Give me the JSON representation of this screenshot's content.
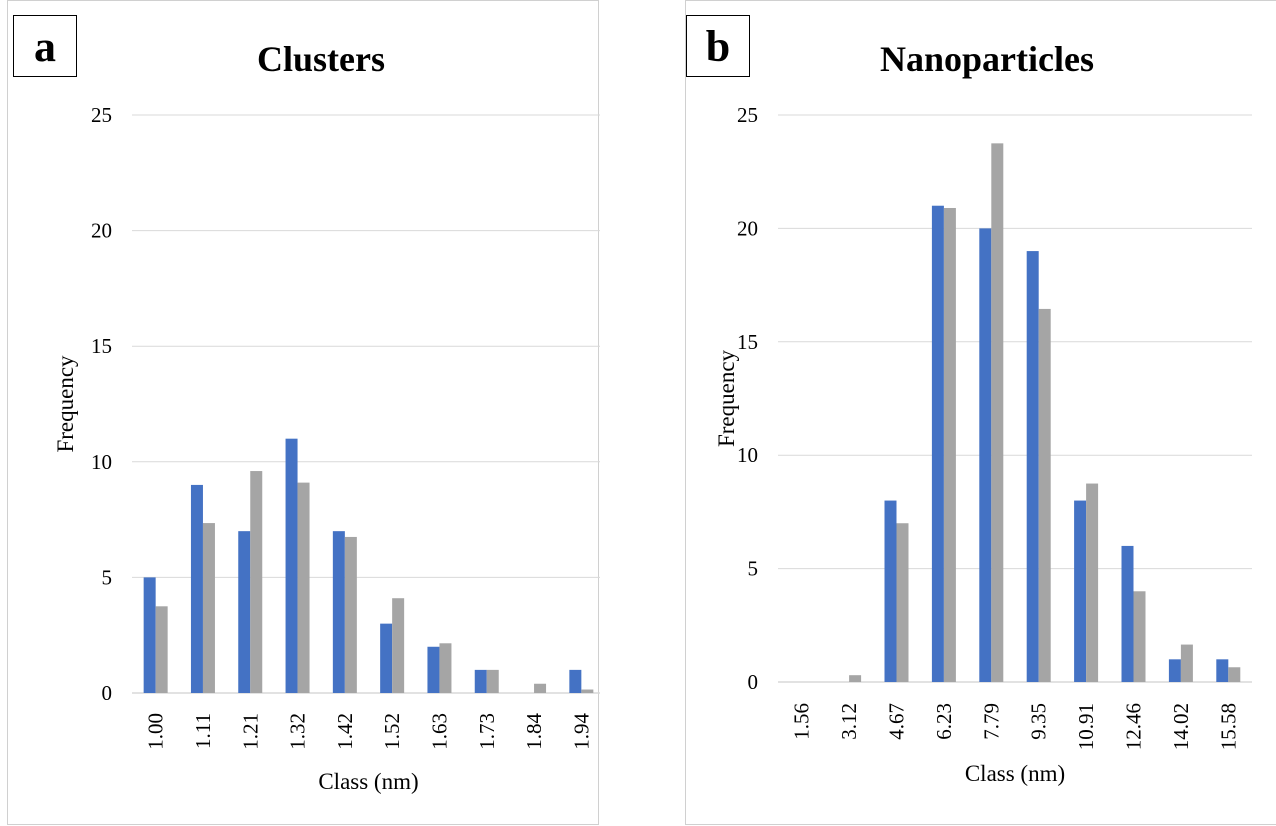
{
  "colors": {
    "series1": "#4472c4",
    "series2": "#a5a5a5",
    "grid": "#d9d9d9"
  },
  "chart_data": [
    {
      "type": "bar",
      "panel_label": "a",
      "title": "Clusters",
      "xlabel": "Class (nm)",
      "ylabel": "Frequency",
      "ylim": [
        0,
        25
      ],
      "yticks": [
        0,
        5,
        10,
        15,
        20,
        25
      ],
      "grid": true,
      "legend": "none",
      "categories": [
        "1.00",
        "1.11",
        "1.21",
        "1.32",
        "1.42",
        "1.52",
        "1.63",
        "1.73",
        "1.84",
        "1.94"
      ],
      "series": [
        {
          "values": [
            5,
            9,
            7,
            11,
            7,
            3,
            2,
            1,
            0,
            1
          ]
        },
        {
          "values": [
            3.75,
            7.35,
            9.6,
            9.1,
            6.75,
            4.1,
            2.15,
            1.0,
            0.4,
            0.15
          ]
        }
      ]
    },
    {
      "type": "bar",
      "panel_label": "b",
      "title": "Nanoparticles",
      "xlabel": "Class (nm)",
      "ylabel": "Frequency",
      "ylim": [
        0,
        25
      ],
      "yticks": [
        0,
        5,
        10,
        15,
        20,
        25
      ],
      "grid": true,
      "legend": "none",
      "categories": [
        "1.56",
        "3.12",
        "4.67",
        "6.23",
        "7.79",
        "9.35",
        "10.91",
        "12.46",
        "14.02",
        "15.58"
      ],
      "series": [
        {
          "values": [
            0,
            0,
            8,
            21,
            20,
            19,
            8,
            6,
            1,
            1
          ]
        },
        {
          "values": [
            0,
            0.3,
            7,
            20.9,
            23.75,
            16.45,
            8.75,
            4,
            1.65,
            0.65
          ]
        }
      ]
    }
  ]
}
